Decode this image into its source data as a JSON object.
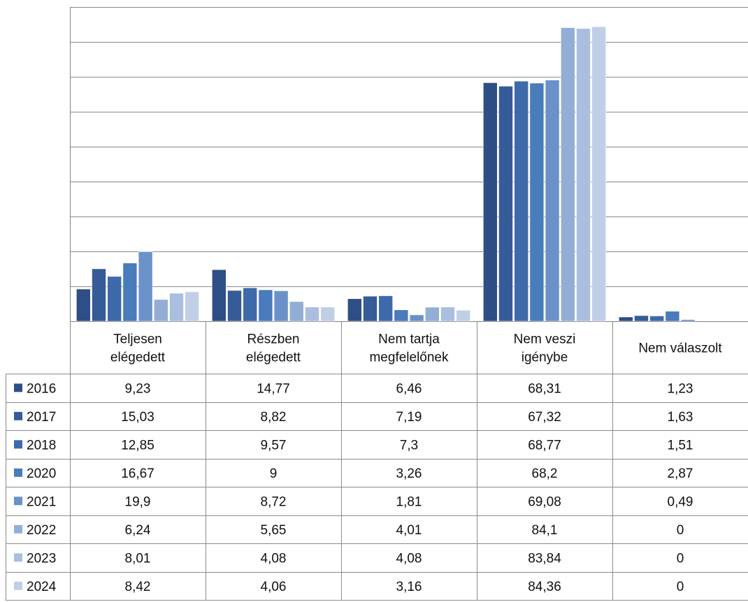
{
  "chart_data": {
    "type": "bar",
    "ylim": [
      0,
      90
    ],
    "grid": true,
    "legend_placement": "data-table-left",
    "categories": [
      [
        "Teljesen",
        "elégedett"
      ],
      [
        "Részben",
        "elégedett"
      ],
      [
        "Nem tartja",
        "megfelelőnek"
      ],
      [
        "Nem veszi",
        "igénybe"
      ],
      [
        "Nem válaszolt"
      ]
    ],
    "series": [
      {
        "name": "2016",
        "color": "#2E4F85",
        "values": [
          9.23,
          14.77,
          6.46,
          68.31,
          1.23
        ],
        "labels": [
          "9,23",
          "14,77",
          "6,46",
          "68,31",
          "1,23"
        ]
      },
      {
        "name": "2017",
        "color": "#355C98",
        "values": [
          15.03,
          8.82,
          7.19,
          67.32,
          1.63
        ],
        "labels": [
          "15,03",
          "8,82",
          "7,19",
          "67,32",
          "1,63"
        ]
      },
      {
        "name": "2018",
        "color": "#3E6AAB",
        "values": [
          12.85,
          9.57,
          7.3,
          68.77,
          1.51
        ],
        "labels": [
          "12,85",
          "9,57",
          "7,3",
          "68,77",
          "1,51"
        ]
      },
      {
        "name": "2020",
        "color": "#4A7BBB",
        "values": [
          16.67,
          9,
          3.26,
          68.2,
          2.87
        ],
        "labels": [
          "16,67",
          "9",
          "3,26",
          "68,2",
          "2,87"
        ]
      },
      {
        "name": "2021",
        "color": "#6A92C9",
        "values": [
          19.9,
          8.72,
          1.81,
          69.08,
          0.49
        ],
        "labels": [
          "19,9",
          "8,72",
          "1,81",
          "69,08",
          "0,49"
        ]
      },
      {
        "name": "2022",
        "color": "#93AED6",
        "values": [
          6.24,
          5.65,
          4.01,
          84.1,
          0
        ],
        "labels": [
          "6,24",
          "5,65",
          "4,01",
          "84,1",
          "0"
        ]
      },
      {
        "name": "2023",
        "color": "#AABFDF",
        "values": [
          8.01,
          4.08,
          4.08,
          83.84,
          0
        ],
        "labels": [
          "8,01",
          "4,08",
          "4,08",
          "83,84",
          "0"
        ]
      },
      {
        "name": "2024",
        "color": "#C0CFE7",
        "values": [
          8.42,
          4.06,
          3.16,
          84.36,
          0
        ],
        "labels": [
          "8,42",
          "4,06",
          "3,16",
          "84,36",
          "0"
        ]
      }
    ]
  }
}
